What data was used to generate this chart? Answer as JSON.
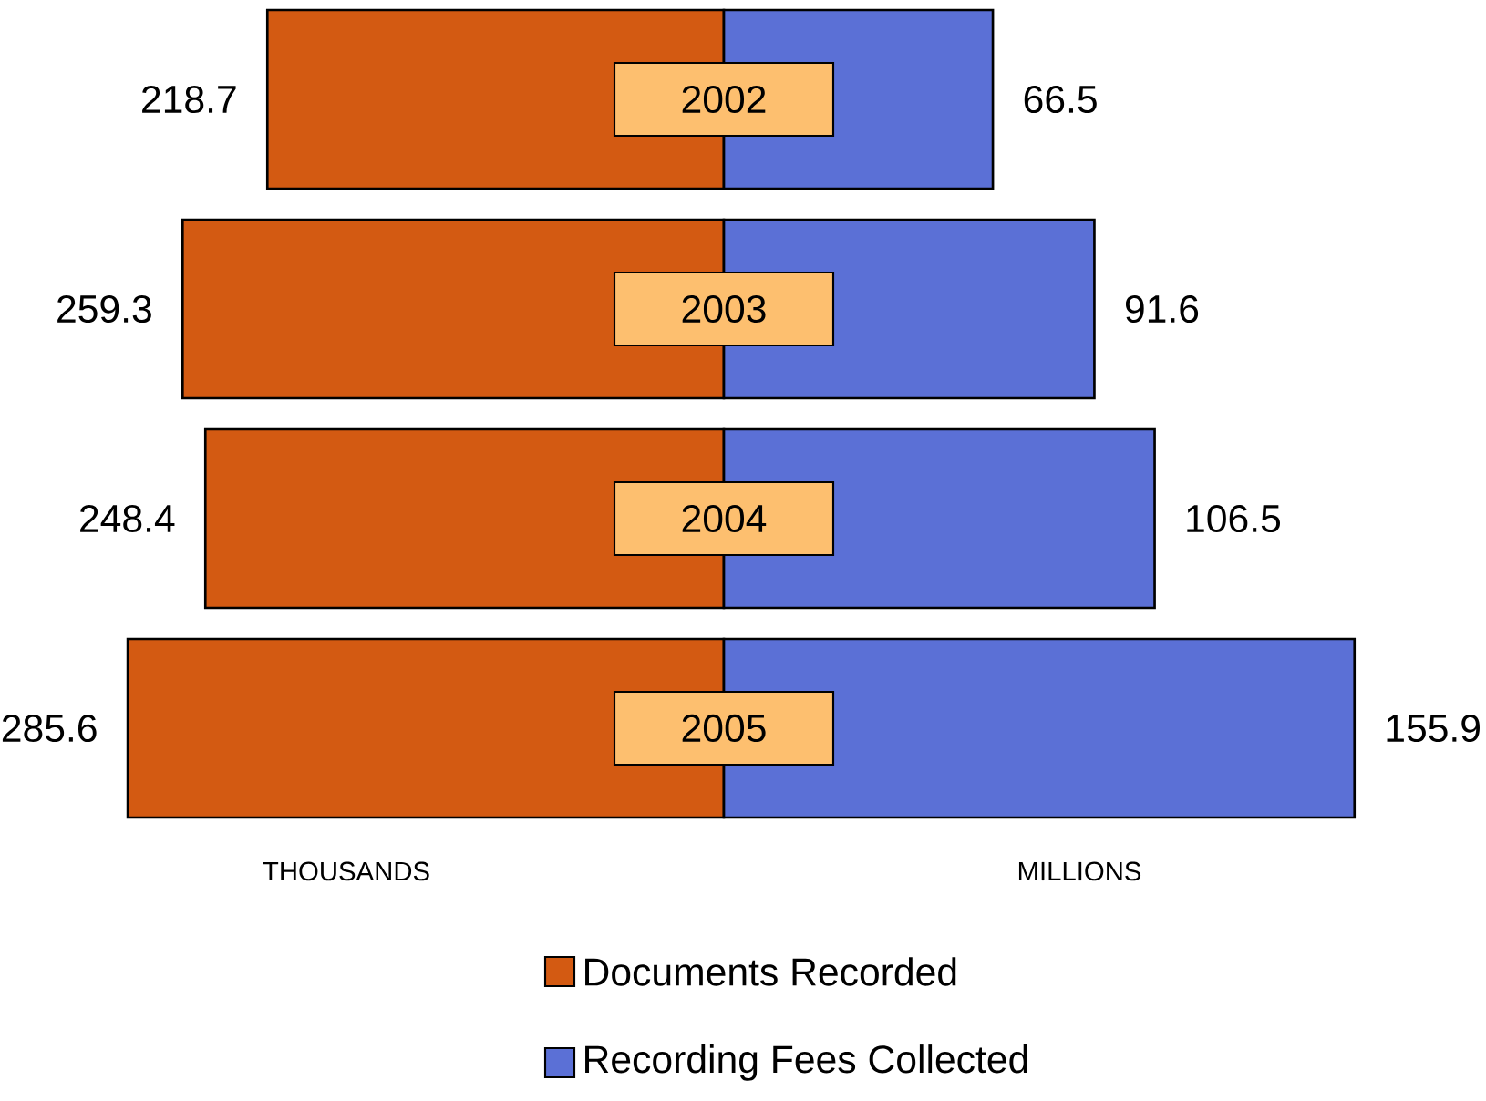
{
  "chart_data": [
    {
      "type": "bar",
      "orientation": "horizontal",
      "categories": [
        "2002",
        "2003",
        "2004",
        "2005"
      ],
      "series": [
        {
          "name": "Documents Recorded",
          "color": "#d35a12",
          "values": [
            218.7,
            259.3,
            248.4,
            285.6
          ],
          "value_labels": [
            "218.7",
            "259.3",
            "248.4",
            "285.6"
          ]
        }
      ],
      "tick_labels": false,
      "legend": "bottom",
      "annotations": [
        "THOUSANDS"
      ]
    },
    {
      "type": "bar",
      "orientation": "horizontal",
      "categories": [
        "2002",
        "2003",
        "2004",
        "2005"
      ],
      "series": [
        {
          "name": "Recording Fees Collected",
          "color": "#5b70d6",
          "values": [
            66.5,
            91.6,
            106.5,
            155.9
          ],
          "value_labels": [
            "66.5",
            "91.6",
            "106.5",
            "155.9"
          ]
        }
      ],
      "tick_labels": "y",
      "legend": "bottom",
      "annotations": [
        "MILLIONS"
      ]
    }
  ]
}
